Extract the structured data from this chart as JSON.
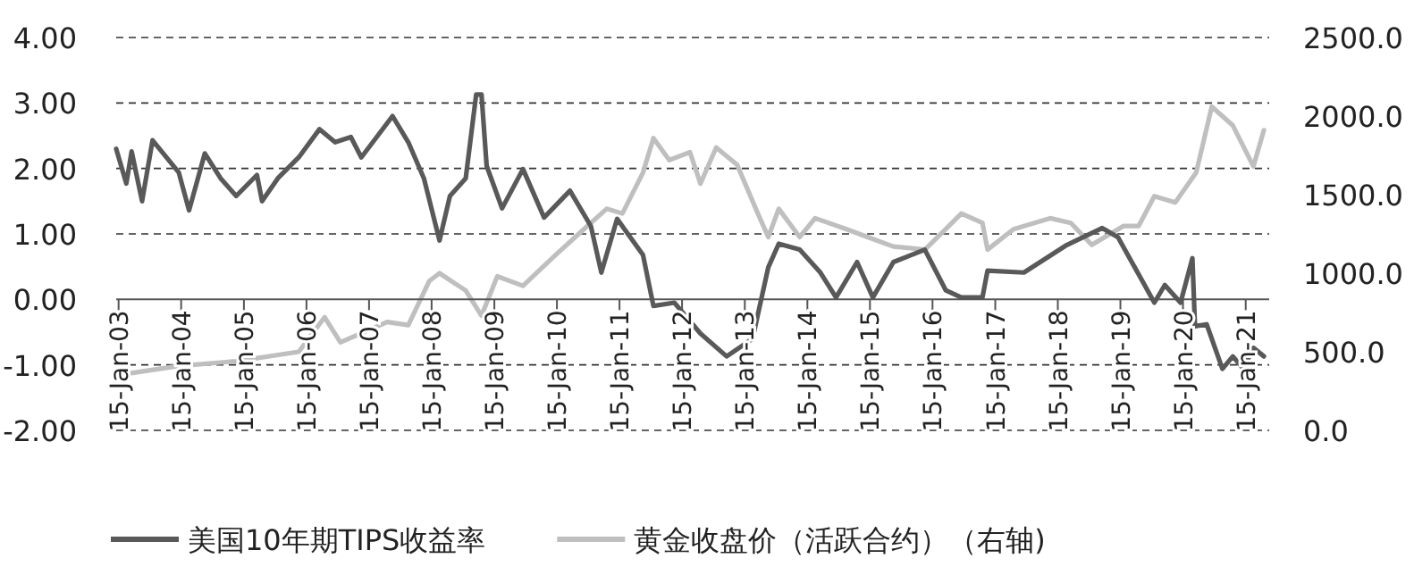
{
  "chart_data": {
    "type": "line",
    "legend": "bottom",
    "grid": "y",
    "line_style": "solid",
    "marker": "none",
    "xlim": [
      "2003-01-01",
      "2021-06-01"
    ],
    "xticks": [
      {
        "value": "2003-01-15",
        "label": "15-Jan-03"
      },
      {
        "value": "2004-01-15",
        "label": "15-Jan-04"
      },
      {
        "value": "2005-01-15",
        "label": "15-Jan-05"
      },
      {
        "value": "2006-01-15",
        "label": "15-Jan-06"
      },
      {
        "value": "2007-01-15",
        "label": "15-Jan-07"
      },
      {
        "value": "2008-01-15",
        "label": "15-Jan-08"
      },
      {
        "value": "2009-01-15",
        "label": "15-Jan-09"
      },
      {
        "value": "2010-01-15",
        "label": "15-Jan-10"
      },
      {
        "value": "2011-01-15",
        "label": "15-Jan-11"
      },
      {
        "value": "2012-01-15",
        "label": "15-Jan-12"
      },
      {
        "value": "2013-01-15",
        "label": "15-Jan-13"
      },
      {
        "value": "2014-01-15",
        "label": "15-Jan-14"
      },
      {
        "value": "2015-01-15",
        "label": "15-Jan-15"
      },
      {
        "value": "2016-01-15",
        "label": "15-Jan-16"
      },
      {
        "value": "2017-01-15",
        "label": "15-Jan-17"
      },
      {
        "value": "2018-01-15",
        "label": "15-Jan-18"
      },
      {
        "value": "2019-01-15",
        "label": "15-Jan-19"
      },
      {
        "value": "2020-01-15",
        "label": "15-Jan-20"
      },
      {
        "value": "2021-01-15",
        "label": "15-Jan-21"
      }
    ],
    "ylim": [
      -2,
      4
    ],
    "yticks": [
      {
        "value": -2,
        "label": "-2.00"
      },
      {
        "value": -1,
        "label": "-1.00"
      },
      {
        "value": 0,
        "label": "0.00"
      },
      {
        "value": 1,
        "label": "1.00"
      },
      {
        "value": 2,
        "label": "2.00"
      },
      {
        "value": 3,
        "label": "3.00"
      },
      {
        "value": 4,
        "label": "4.00"
      }
    ],
    "y2lim": [
      0,
      2500
    ],
    "y2ticks": [
      {
        "value": 0,
        "label": "0.0"
      },
      {
        "value": 500,
        "label": "500.0"
      },
      {
        "value": 1000,
        "label": "1000.0"
      },
      {
        "value": 1500,
        "label": "1500.0"
      },
      {
        "value": 2000,
        "label": "2000.0"
      },
      {
        "value": 2500,
        "label": "2500.0"
      }
    ],
    "series": [
      {
        "name": "美国10年期TIPS收益率",
        "color": "#595959",
        "x": [
          "2003-01",
          "2003-03",
          "2003-04",
          "2003-06",
          "2003-08",
          "2004-01",
          "2004-03",
          "2004-06",
          "2004-09",
          "2004-12",
          "2005-04",
          "2005-05",
          "2005-08",
          "2005-12",
          "2006-04",
          "2006-07",
          "2006-10",
          "2006-12",
          "2007-06",
          "2007-09",
          "2007-12",
          "2008-03",
          "2008-05",
          "2008-08",
          "2008-10",
          "2008-11",
          "2008-12",
          "2009-03",
          "2009-07",
          "2009-11",
          "2010-04",
          "2010-08",
          "2010-10",
          "2011-01",
          "2011-06",
          "2011-08",
          "2011-12",
          "2012-05",
          "2012-10",
          "2013-03",
          "2013-06",
          "2013-08",
          "2013-12",
          "2014-04",
          "2014-07",
          "2014-11",
          "2015-02",
          "2015-06",
          "2015-12",
          "2016-04",
          "2016-07",
          "2016-11",
          "2016-12",
          "2017-07",
          "2018-03",
          "2018-10",
          "2019-01",
          "2019-08",
          "2019-10",
          "2020-01",
          "2020-03-10",
          "2020-03-25",
          "2020-06",
          "2020-09",
          "2020-11",
          "2021-01",
          "2021-03",
          "2021-05"
        ],
        "values": [
          2.3,
          1.77,
          2.26,
          1.5,
          2.43,
          1.94,
          1.36,
          2.23,
          1.85,
          1.58,
          1.9,
          1.5,
          1.85,
          2.17,
          2.6,
          2.4,
          2.48,
          2.17,
          2.8,
          2.4,
          1.85,
          0.9,
          1.58,
          1.85,
          3.13,
          3.13,
          2.04,
          1.39,
          1.99,
          1.25,
          1.66,
          1.12,
          0.41,
          1.23,
          0.68,
          -0.1,
          -0.05,
          -0.52,
          -0.87,
          -0.6,
          0.49,
          0.85,
          0.76,
          0.41,
          0.03,
          0.57,
          0.03,
          0.57,
          0.76,
          0.14,
          0.03,
          0.03,
          0.44,
          0.41,
          0.82,
          1.09,
          0.95,
          -0.05,
          0.22,
          -0.05,
          0.63,
          -0.41,
          -0.38,
          -1.06,
          -0.87,
          -1.06,
          -0.74,
          -0.87
        ]
      },
      {
        "name": "黄金收盘价（活跃合约）（右轴)",
        "color": "#bfbfbf",
        "axis": "y2",
        "x": [
          "2003-01",
          "2004-01",
          "2004-12",
          "2005-12",
          "2006-05",
          "2006-08",
          "2007-05",
          "2007-09",
          "2008-01",
          "2008-03",
          "2008-08",
          "2008-11",
          "2009-02",
          "2009-07",
          "2010-01",
          "2010-06",
          "2010-11",
          "2011-02",
          "2011-06",
          "2011-08",
          "2011-11",
          "2012-03",
          "2012-05",
          "2012-08",
          "2012-12",
          "2013-04",
          "2013-06",
          "2013-08",
          "2013-12",
          "2014-03",
          "2014-09",
          "2015-01",
          "2015-06",
          "2015-12",
          "2016-04",
          "2016-07",
          "2016-11",
          "2016-12",
          "2017-05",
          "2017-12",
          "2018-04",
          "2018-08",
          "2019-02",
          "2019-05",
          "2019-08",
          "2019-12",
          "2020-04",
          "2020-07",
          "2020-11",
          "2021-03",
          "2021-05"
        ],
        "values": [
          350,
          410,
          440,
          500,
          720,
          560,
          690,
          670,
          950,
          1000,
          890,
          730,
          980,
          920,
          1110,
          1260,
          1410,
          1380,
          1640,
          1860,
          1720,
          1770,
          1570,
          1800,
          1690,
          1380,
          1230,
          1410,
          1230,
          1350,
          1280,
          1230,
          1170,
          1150,
          1280,
          1380,
          1320,
          1150,
          1280,
          1350,
          1320,
          1180,
          1300,
          1300,
          1490,
          1450,
          1640,
          2060,
          1940,
          1680,
          1910
        ]
      }
    ]
  }
}
